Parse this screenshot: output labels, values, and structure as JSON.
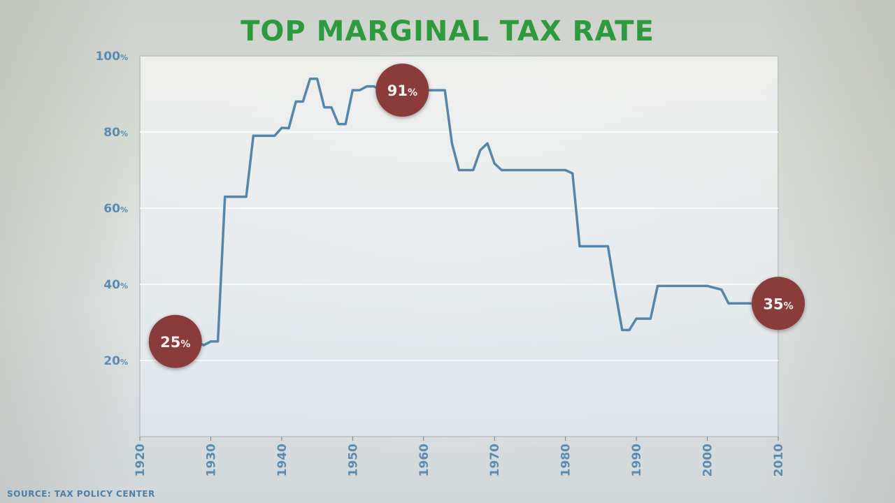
{
  "title": "TOP MARGINAL TAX RATE",
  "source": "SOURCE: TAX POLICY CENTER",
  "colors": {
    "title": "#2e9a3e",
    "line": "#5587ad",
    "axis_text": "#5b8bb0",
    "callout": "#8a3a3a",
    "gridline": "#ffffff"
  },
  "chart_data": {
    "type": "line",
    "title": "TOP MARGINAL TAX RATE",
    "xlabel": "",
    "ylabel": "",
    "xlim": [
      1920,
      2010
    ],
    "ylim": [
      0,
      100
    ],
    "x_ticks": [
      "1920",
      "1930",
      "1940",
      "1950",
      "1960",
      "1970",
      "1980",
      "1990",
      "2000",
      "2010"
    ],
    "y_ticks": [
      {
        "value": 20,
        "label": "20",
        "unit": "%"
      },
      {
        "value": 40,
        "label": "40",
        "unit": "%"
      },
      {
        "value": 60,
        "label": "60",
        "unit": "%"
      },
      {
        "value": 80,
        "label": "80",
        "unit": "%"
      },
      {
        "value": 100,
        "label": "100",
        "unit": "%"
      }
    ],
    "grid": true,
    "x": [
      1925,
      1926,
      1927,
      1928,
      1929,
      1930,
      1931,
      1932,
      1933,
      1934,
      1935,
      1936,
      1937,
      1938,
      1939,
      1940,
      1941,
      1942,
      1943,
      1944,
      1945,
      1946,
      1947,
      1948,
      1949,
      1950,
      1951,
      1952,
      1953,
      1954,
      1955,
      1956,
      1957,
      1958,
      1959,
      1960,
      1961,
      1962,
      1963,
      1964,
      1965,
      1966,
      1967,
      1968,
      1969,
      1970,
      1971,
      1972,
      1973,
      1974,
      1975,
      1976,
      1977,
      1978,
      1979,
      1980,
      1981,
      1982,
      1983,
      1984,
      1985,
      1986,
      1987,
      1988,
      1989,
      1990,
      1991,
      1992,
      1993,
      1994,
      1995,
      1996,
      1997,
      1998,
      1999,
      2000,
      2001,
      2002,
      2003,
      2004,
      2005,
      2006,
      2007,
      2008,
      2009,
      2010
    ],
    "values": [
      25,
      25,
      25,
      25,
      24,
      25,
      25,
      63,
      63,
      63,
      63,
      79,
      79,
      79,
      79,
      81.1,
      81,
      88,
      88,
      94,
      94,
      86.5,
      86.5,
      82.1,
      82.1,
      91,
      91,
      92,
      92,
      91,
      91,
      91,
      91,
      91,
      91,
      91,
      91,
      91,
      91,
      77,
      70,
      70,
      70,
      75.25,
      77,
      71.75,
      70,
      70,
      70,
      70,
      70,
      70,
      70,
      70,
      70,
      70,
      69.13,
      50,
      50,
      50,
      50,
      50,
      38.5,
      28,
      28,
      31,
      31,
      31,
      39.6,
      39.6,
      39.6,
      39.6,
      39.6,
      39.6,
      39.6,
      39.6,
      39.1,
      38.6,
      35,
      35,
      35,
      35,
      35,
      35,
      35,
      35
    ],
    "annotations": [
      {
        "x": 1925,
        "y": 25,
        "label": "25",
        "unit": "%"
      },
      {
        "x": 1957,
        "y": 91,
        "label": "91",
        "unit": "%"
      },
      {
        "x": 2010,
        "y": 35,
        "label": "35",
        "unit": "%"
      }
    ]
  }
}
